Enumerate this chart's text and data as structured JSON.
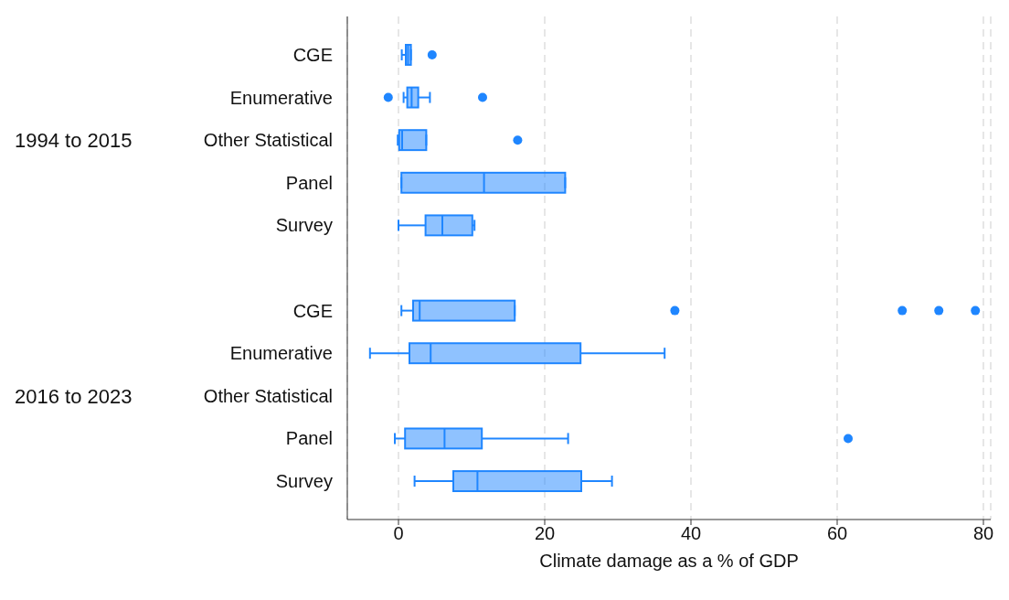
{
  "chart_data": {
    "type": "box",
    "orientation": "horizontal",
    "categories": [
      "CGE",
      "Enumerative",
      "Other Statistical",
      "Panel",
      "Survey",
      null,
      "CGE",
      "Enumerative",
      "Other Statistical",
      "Panel",
      "Survey"
    ],
    "boxes": [
      {
        "low": 0.45,
        "q1": 1.0,
        "median": 1.3,
        "q3": 1.7,
        "high": 1.7,
        "outliers": [
          4.6
        ]
      },
      {
        "low": 0.7,
        "q1": 1.2,
        "median": 1.8,
        "q3": 2.7,
        "high": 4.3,
        "outliers": [
          -1.4,
          11.5
        ]
      },
      {
        "low": -0.1,
        "q1": 0.1,
        "median": 0.5,
        "q3": 3.8,
        "high": 3.8,
        "outliers": [
          16.3
        ]
      },
      {
        "low": 0.4,
        "q1": 0.4,
        "median": 11.7,
        "q3": 22.8,
        "high": 22.8
      },
      {
        "low": 0,
        "q1": 3.7,
        "median": 6.0,
        "q3": 10.1,
        "high": 10.4
      },
      null,
      {
        "low": 0.4,
        "q1": 2.0,
        "median": 2.9,
        "q3": 15.9,
        "high": 15.9,
        "outliers": [
          37.8,
          68.9,
          73.9,
          78.9
        ]
      },
      {
        "low": -3.9,
        "q1": 1.5,
        "median": 4.4,
        "q3": 24.9,
        "high": 36.4
      },
      null,
      {
        "low": -0.5,
        "q1": 0.9,
        "median": 6.3,
        "q3": 11.4,
        "high": 23.2,
        "outliers": [
          61.5
        ]
      },
      {
        "low": 2.2,
        "q1": 7.5,
        "median": 10.8,
        "q3": 25.0,
        "high": 29.2
      }
    ],
    "color": "#1f86ff",
    "xlim": [
      -7,
      81
    ],
    "xticks": [
      0,
      20,
      40,
      60,
      80
    ],
    "xlabel": "Climate damage as a % of GDP",
    "grid": "x",
    "annotations": [
      "1994 to 2015",
      "2016 to 2023"
    ]
  }
}
